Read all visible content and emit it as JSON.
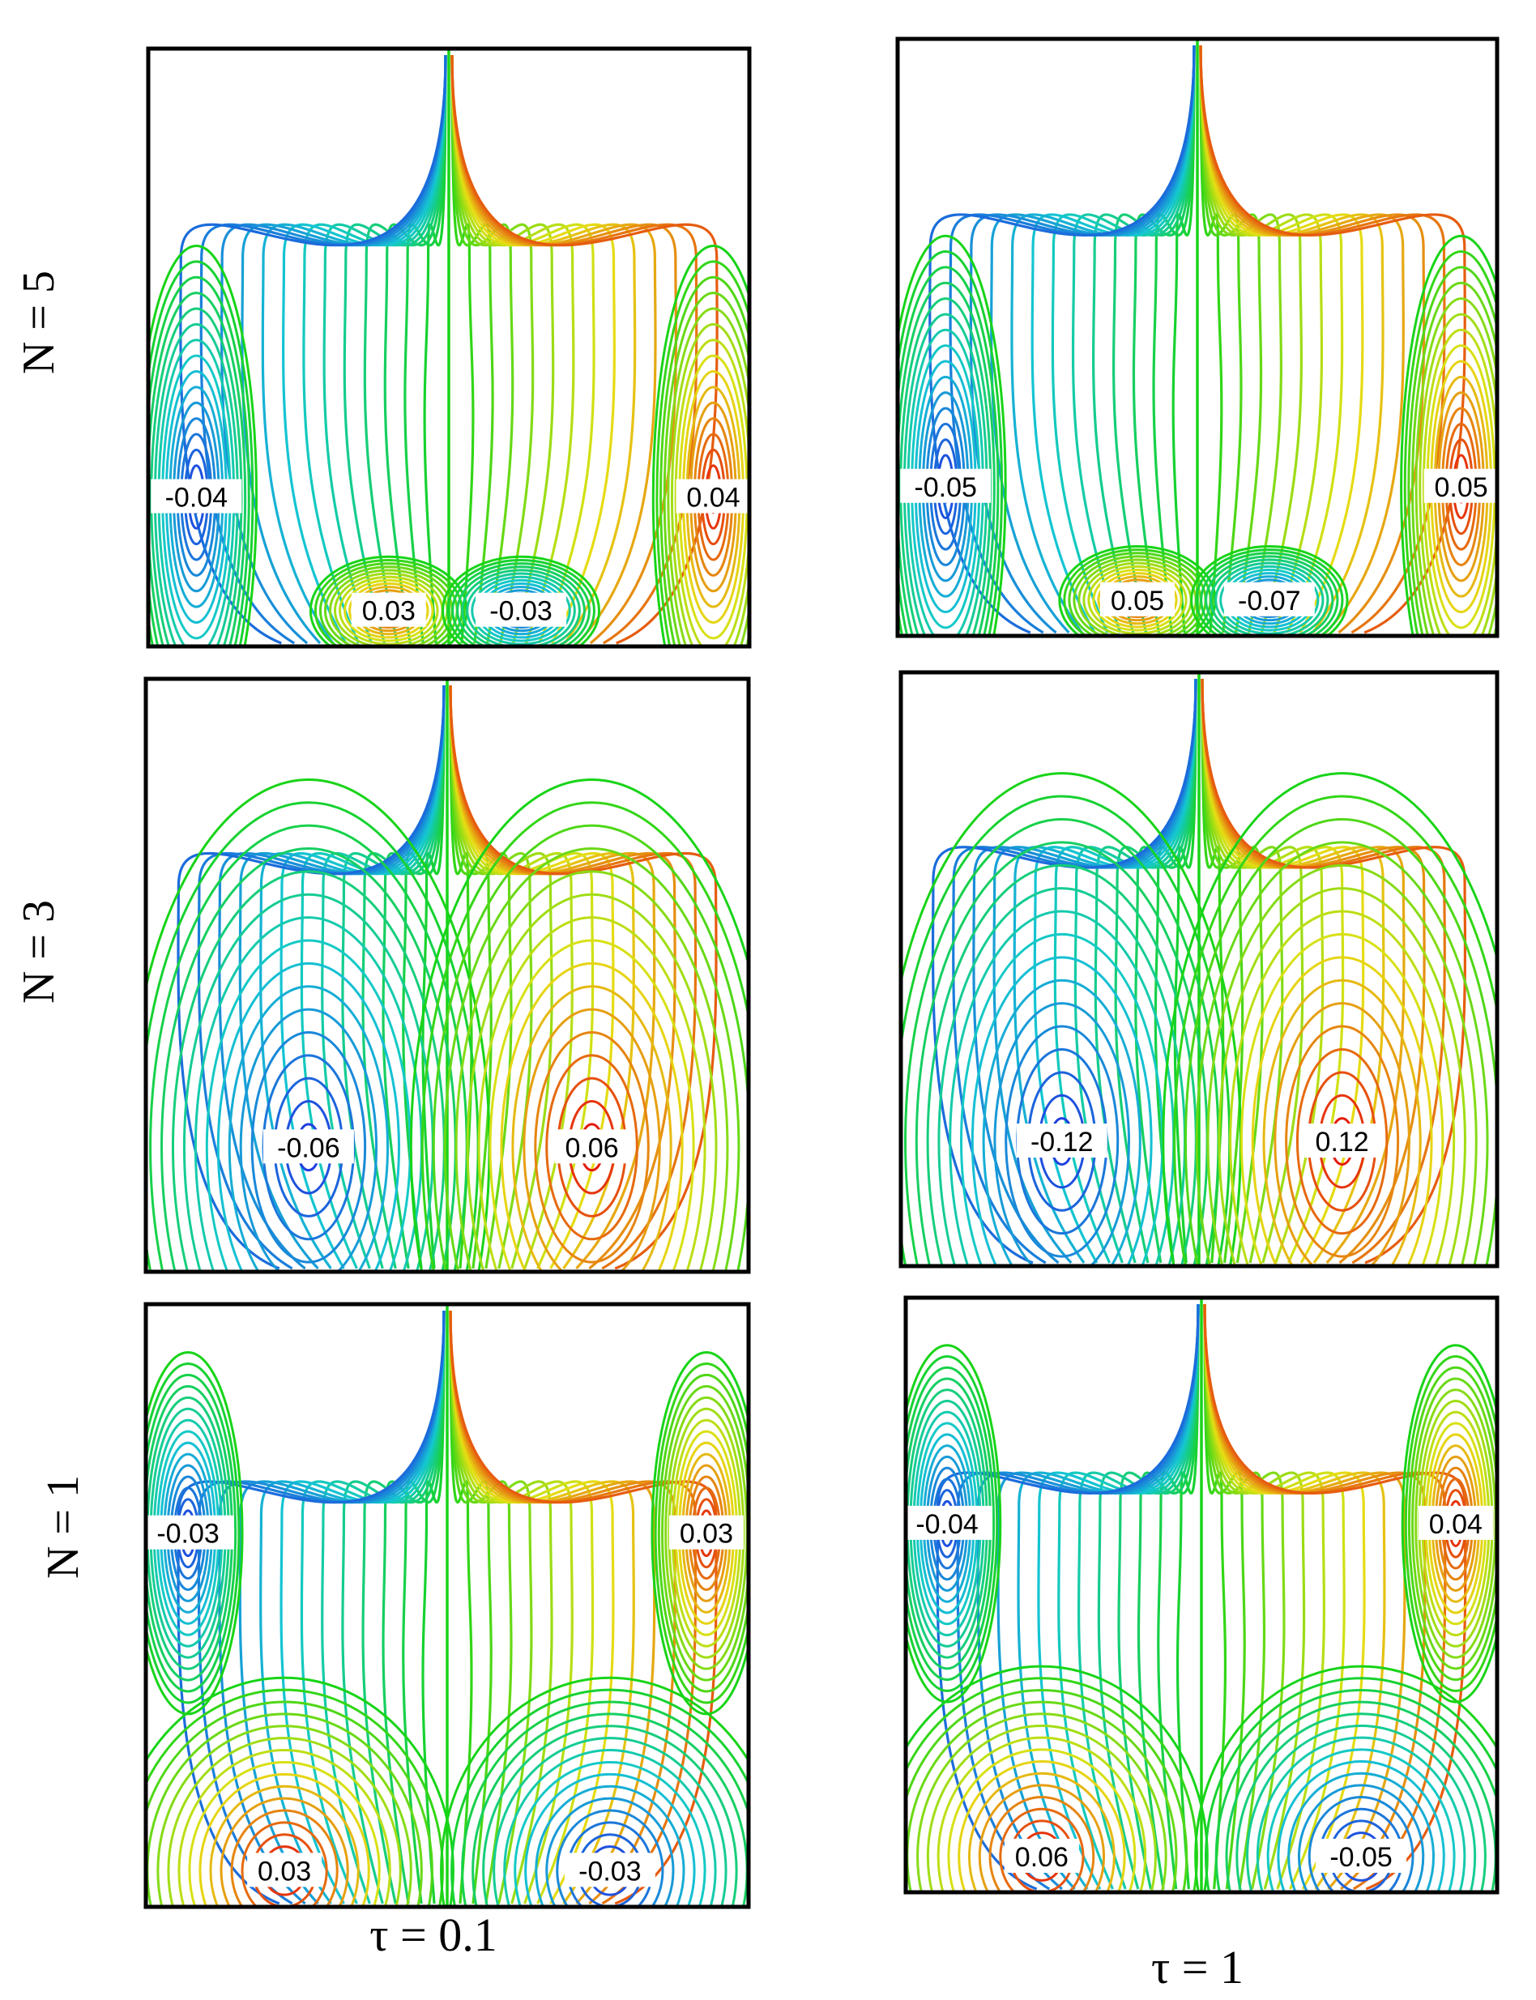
{
  "figure": {
    "row_labels": [
      "N = 5",
      "N = 3",
      "N = 1"
    ],
    "column_labels": [
      "τ = 0.1",
      "τ = 1"
    ],
    "colors": {
      "negative": "#1f3fe0",
      "neutral": "#18d418",
      "positive": "#e61b0c",
      "frame": "#000000"
    },
    "panels": [
      {
        "row": "N = 5",
        "column": "τ = 0.1",
        "pattern": "five-cell",
        "vortices": [
          {
            "label": "-0.04",
            "sign": -1
          },
          {
            "label": "0.04",
            "sign": 1
          },
          {
            "label": "0.03",
            "sign": 1
          },
          {
            "label": "-0.03",
            "sign": -1
          }
        ]
      },
      {
        "row": "N = 5",
        "column": "τ = 1",
        "pattern": "five-cell",
        "vortices": [
          {
            "label": "-0.05",
            "sign": -1
          },
          {
            "label": "0.05",
            "sign": 1
          },
          {
            "label": "0.05",
            "sign": 1
          },
          {
            "label": "-0.07",
            "sign": -1
          }
        ]
      },
      {
        "row": "N = 3",
        "column": "τ = 0.1",
        "pattern": "two-cell",
        "vortices": [
          {
            "label": "-0.06",
            "sign": -1
          },
          {
            "label": "0.06",
            "sign": 1
          }
        ]
      },
      {
        "row": "N = 3",
        "column": "τ = 1",
        "pattern": "two-cell",
        "vortices": [
          {
            "label": "-0.12",
            "sign": -1
          },
          {
            "label": "0.12",
            "sign": 1
          }
        ]
      },
      {
        "row": "N = 1",
        "column": "τ = 0.1",
        "pattern": "four-cell",
        "vortices": [
          {
            "label": "-0.03",
            "sign": -1
          },
          {
            "label": "0.03",
            "sign": 1
          },
          {
            "label": "0.03",
            "sign": 1
          },
          {
            "label": "-0.03",
            "sign": -1
          }
        ]
      },
      {
        "row": "N = 1",
        "column": "τ = 1",
        "pattern": "four-cell",
        "vortices": [
          {
            "label": "-0.04",
            "sign": -1
          },
          {
            "label": "0.04",
            "sign": 1
          },
          {
            "label": "0.06",
            "sign": 1
          },
          {
            "label": "-0.05",
            "sign": -1
          }
        ]
      }
    ]
  }
}
